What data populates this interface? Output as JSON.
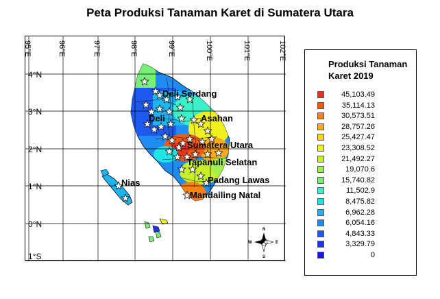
{
  "title": "Peta Produksi Tanaman Karet di Sumatera Utara",
  "longitude_labels": [
    "95°E",
    "96°E",
    "97°E",
    "98°E",
    "99°E",
    "100°E",
    "101°E",
    "102°E"
  ],
  "latitude_labels": [
    "4°N",
    "3°N",
    "2°N",
    "1°N",
    "0°N",
    "1°S"
  ],
  "place_labels": [
    "Deli Serdang",
    "Deli",
    "Asahan",
    "Sumatera Utara",
    "Tapanuli Selatan",
    "Padang Lawas",
    "Nias",
    "Mandailing Natal"
  ],
  "legend": {
    "title": "Produksi Tanaman Karet 2019",
    "items": [
      {
        "label": "45,103.49",
        "color": "#e6321e"
      },
      {
        "label": "35,114.13",
        "color": "#f05a14"
      },
      {
        "label": "30,573.51",
        "color": "#f88214"
      },
      {
        "label": "28,757.26",
        "color": "#fcaa1e"
      },
      {
        "label": "25,427.47",
        "color": "#fcd21e"
      },
      {
        "label": "23,308.52",
        "color": "#f0f01e"
      },
      {
        "label": "21,492.27",
        "color": "#c8f028"
      },
      {
        "label": "19,070.6",
        "color": "#a0f050"
      },
      {
        "label": "15,740.82",
        "color": "#78f078"
      },
      {
        "label": "11,502.9",
        "color": "#3cf0c8"
      },
      {
        "label": "8,475.82",
        "color": "#1ee6e6"
      },
      {
        "label": "6,962.28",
        "color": "#1eb4f0"
      },
      {
        "label": "6,054.16",
        "color": "#1e8cf0"
      },
      {
        "label": "4,843.33",
        "color": "#1e5af0"
      },
      {
        "label": "3,329.79",
        "color": "#1e32f0"
      },
      {
        "label": "0",
        "color": "#1e14f0"
      }
    ]
  },
  "compass": {
    "n": "N",
    "s": "S",
    "e": "E",
    "w": "W"
  }
}
